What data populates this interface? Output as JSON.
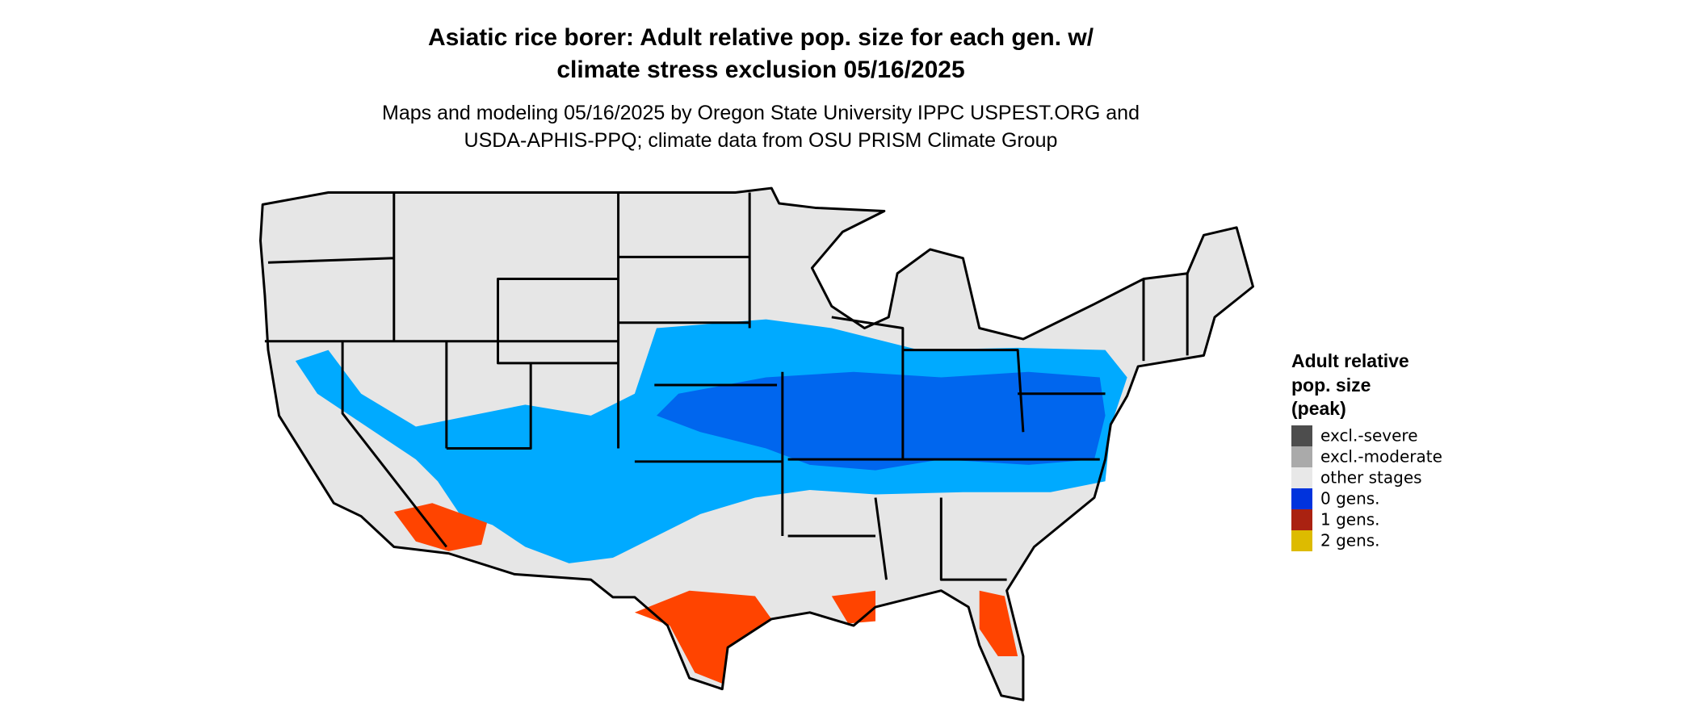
{
  "title_lines": [
    "Asiatic rice borer: Adult relative pop. size for each gen. w/",
    "climate stress exclusion 05/16/2025"
  ],
  "subtitle_lines": [
    "Maps and modeling 05/16/2025 by Oregon State University IPPC USPEST.ORG and",
    "USDA-APHIS-PPQ; climate data from OSU PRISM Climate Group"
  ],
  "legend": {
    "title_lines": [
      "Adult relative",
      "pop. size",
      "(peak)"
    ],
    "items": [
      {
        "label": "excl.-severe",
        "color": "#4d4d4d"
      },
      {
        "label": "excl.-moderate",
        "color": "#aaaaaa"
      },
      {
        "label": "other stages",
        "color": "#e8e8e8"
      },
      {
        "label": "0 gens.",
        "color": "#0033dd"
      },
      {
        "label": "1 gens.",
        "color": "#aa2211"
      },
      {
        "label": "2 gens.",
        "color": "#ddbb00"
      }
    ]
  }
}
